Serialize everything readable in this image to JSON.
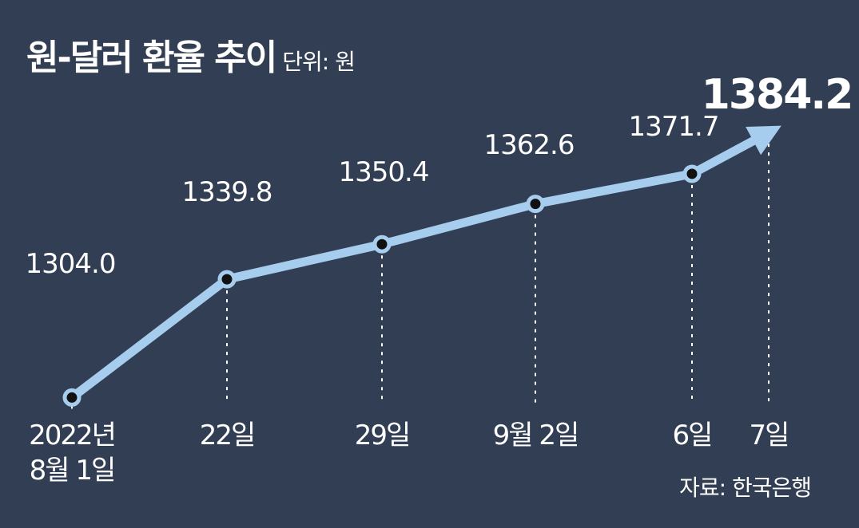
{
  "title": "원-달러 환율 추이",
  "unit": "단위: 원",
  "source": "자료: 한국은행",
  "colors": {
    "background": "#323e53",
    "line": "#a7cdee",
    "marker": "#111111",
    "text": "#ffffff"
  },
  "chart_data": {
    "type": "line",
    "title": "원-달러 환율 추이",
    "ylabel": "단위: 원",
    "categories": [
      "2022년 8월 1일",
      "22일",
      "29일",
      "9월 2일",
      "6일",
      "7일"
    ],
    "category_lines": [
      [
        "2022년",
        "8월 1일"
      ],
      [
        "22일"
      ],
      [
        "29일"
      ],
      [
        "9월 2일"
      ],
      [
        "6일"
      ],
      [
        "7일"
      ]
    ],
    "values": [
      1304.0,
      1339.8,
      1350.4,
      1362.6,
      1371.7,
      1384.2
    ],
    "value_labels": [
      "1304.0",
      "1339.8",
      "1350.4",
      "1362.6",
      "1371.7",
      "1384.2"
    ],
    "highlight_last": true,
    "ylim": [
      1265,
      1405
    ],
    "grid": false
  }
}
